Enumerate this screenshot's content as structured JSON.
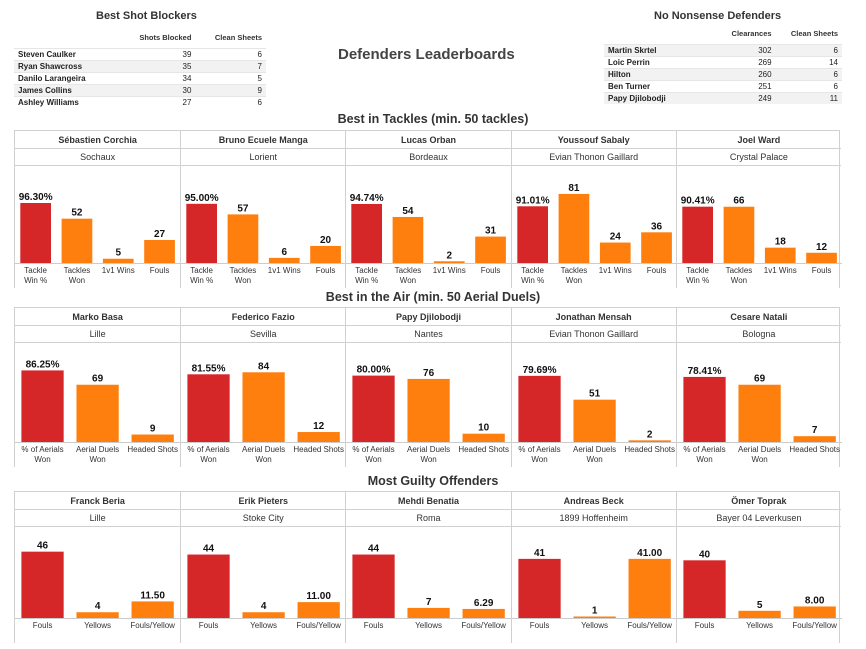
{
  "main_title": "Defenders Leaderboards",
  "colors": {
    "red": "#d62728",
    "orange": "#ff7f0e"
  },
  "shot_blockers": {
    "title": "Best Shot Blockers",
    "columns": [
      "Shots Blocked",
      "Clean Sheets"
    ],
    "rows": [
      {
        "name": "Steven Caulker",
        "a": "39",
        "b": "6"
      },
      {
        "name": "Ryan Shawcross",
        "a": "35",
        "b": "7"
      },
      {
        "name": "Danilo Larangeira",
        "a": "34",
        "b": "5"
      },
      {
        "name": "James Collins",
        "a": "30",
        "b": "9"
      },
      {
        "name": "Ashley Williams",
        "a": "27",
        "b": "6"
      }
    ]
  },
  "no_nonsense": {
    "title": "No Nonsense Defenders",
    "columns": [
      "Clearances",
      "Clean Sheets"
    ],
    "rows": [
      {
        "name": "Martin Skrtel",
        "a": "302",
        "b": "6"
      },
      {
        "name": "Loic Perrin",
        "a": "269",
        "b": "14"
      },
      {
        "name": "Hilton",
        "a": "260",
        "b": "6"
      },
      {
        "name": "Ben Turner",
        "a": "251",
        "b": "6"
      },
      {
        "name": "Papy Djilobodji",
        "a": "249",
        "b": "11"
      }
    ]
  },
  "chart_data": [
    {
      "type": "bar",
      "title": "Best in Tackles (min. 50 tackles)",
      "categories": [
        "Tackle Win %",
        "Tackles Won",
        "1v1 Wins",
        "Fouls"
      ],
      "category_lines": [
        [
          "Tackle",
          "Win %"
        ],
        [
          "Tackles",
          "Won"
        ],
        [
          "1v1 Wins"
        ],
        [
          "Fouls"
        ]
      ],
      "colors": [
        "red",
        "orange",
        "orange",
        "orange"
      ],
      "scale": [
        130,
        95,
        95,
        95
      ],
      "players": [
        {
          "name": "Sébastien Corchia",
          "club": "Sochaux",
          "values": [
            96.3,
            52,
            5,
            27
          ],
          "labels": [
            "96.30%",
            "52",
            "5",
            "27"
          ]
        },
        {
          "name": "Bruno Ecuele Manga",
          "club": "Lorient",
          "values": [
            95.0,
            57,
            6,
            20
          ],
          "labels": [
            "95.00%",
            "57",
            "6",
            "20"
          ]
        },
        {
          "name": "Lucas Orban",
          "club": "Bordeaux",
          "values": [
            94.74,
            54,
            2,
            31
          ],
          "labels": [
            "94.74%",
            "54",
            "2",
            "31"
          ]
        },
        {
          "name": "Youssouf Sabaly",
          "club": "Evian Thonon Gaillard",
          "values": [
            91.01,
            81,
            24,
            36
          ],
          "labels": [
            "91.01%",
            "81",
            "24",
            "36"
          ]
        },
        {
          "name": "Joel Ward",
          "club": "Crystal Palace",
          "values": [
            90.41,
            66,
            18,
            12
          ],
          "labels": [
            "90.41%",
            "66",
            "18",
            "12"
          ]
        }
      ]
    },
    {
      "type": "bar",
      "title": "Best in the Air (min. 50 Aerial Duels)",
      "categories": [
        "% of Aerials Won",
        "Aerial Duels Won",
        "Headed Shots"
      ],
      "category_lines": [
        [
          "% of Aerials",
          "Won"
        ],
        [
          "Aerial Duels",
          "Won"
        ],
        [
          "Headed Shots"
        ]
      ],
      "colors": [
        "red",
        "orange",
        "orange"
      ],
      "scale": [
        100,
        100,
        100
      ],
      "players": [
        {
          "name": "Marko Basa",
          "club": "Lille",
          "values": [
            86.25,
            69,
            9
          ],
          "labels": [
            "86.25%",
            "69",
            "9"
          ]
        },
        {
          "name": "Federico Fazio",
          "club": "Sevilla",
          "values": [
            81.55,
            84,
            12
          ],
          "labels": [
            "81.55%",
            "84",
            "12"
          ]
        },
        {
          "name": "Papy Djilobodji",
          "club": "Nantes",
          "values": [
            80.0,
            76,
            10
          ],
          "labels": [
            "80.00%",
            "76",
            "10"
          ]
        },
        {
          "name": "Jonathan Mensah",
          "club": "Evian Thonon Gaillard",
          "values": [
            79.69,
            51,
            2
          ],
          "labels": [
            "79.69%",
            "51",
            "2"
          ]
        },
        {
          "name": "Cesare Natali",
          "club": "Bologna",
          "values": [
            78.41,
            69,
            7
          ],
          "labels": [
            "78.41%",
            "69",
            "7"
          ]
        }
      ]
    },
    {
      "type": "bar",
      "title": "Most Guilty Offenders",
      "categories": [
        "Fouls",
        "Yellows",
        "Fouls/Yellow"
      ],
      "category_lines": [
        [
          "Fouls"
        ],
        [
          "Yellows"
        ],
        [
          "Fouls/Yellow"
        ]
      ],
      "colors": [
        "red",
        "orange",
        "orange"
      ],
      "scale": [
        52,
        52,
        52
      ],
      "players": [
        {
          "name": "Franck Beria",
          "club": "Lille",
          "values": [
            46,
            4,
            11.5
          ],
          "labels": [
            "46",
            "4",
            "11.50"
          ]
        },
        {
          "name": "Erik Pieters",
          "club": "Stoke City",
          "values": [
            44,
            4,
            11.0
          ],
          "labels": [
            "44",
            "4",
            "11.00"
          ]
        },
        {
          "name": "Mehdi Benatia",
          "club": "Roma",
          "values": [
            44,
            7,
            6.29
          ],
          "labels": [
            "44",
            "7",
            "6.29"
          ]
        },
        {
          "name": "Andreas Beck",
          "club": "1899 Hoffenheim",
          "values": [
            41,
            1,
            41.0
          ],
          "labels": [
            "41",
            "1",
            "41.00"
          ]
        },
        {
          "name": "Ömer Toprak",
          "club": "Bayer 04 Leverkusen",
          "values": [
            40,
            5,
            8.0
          ],
          "labels": [
            "40",
            "5",
            "8.00"
          ]
        }
      ]
    }
  ]
}
